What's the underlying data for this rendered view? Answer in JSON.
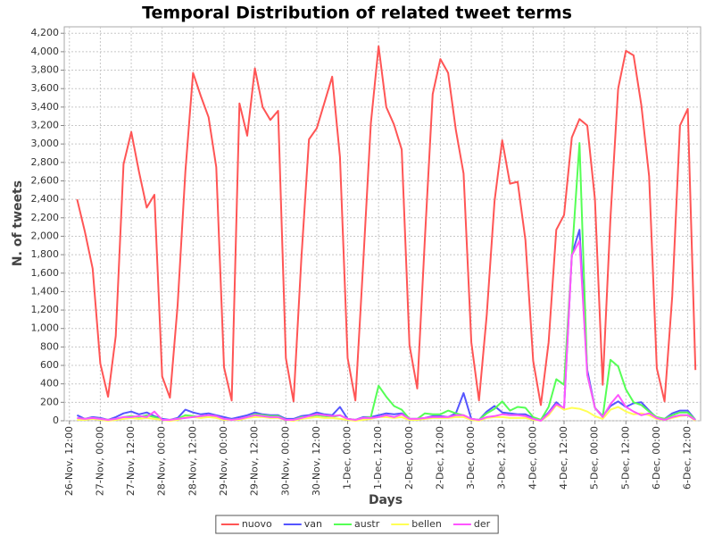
{
  "chart_data": {
    "type": "line",
    "title": "Temporal Distribution of related tweet terms",
    "xlabel": "Days",
    "ylabel": "N. of tweets",
    "x": [
      15,
      18,
      21,
      24,
      27,
      30,
      33,
      36,
      39,
      42,
      45,
      48,
      51,
      54,
      57,
      60,
      63,
      66,
      69,
      72,
      75,
      78,
      81,
      84,
      87,
      90,
      93,
      96,
      99,
      102,
      105,
      108,
      111,
      114,
      117,
      120,
      123,
      126,
      129,
      132,
      135,
      138,
      141,
      144,
      147,
      150,
      153,
      156,
      159,
      162,
      165,
      168,
      171,
      174,
      177,
      180,
      183,
      186,
      189,
      192,
      195,
      198,
      201,
      204,
      207,
      210,
      213,
      216,
      219,
      222,
      225,
      228,
      231,
      234,
      237,
      240,
      243,
      246,
      249,
      252,
      255
    ],
    "xlim": [
      10,
      257
    ],
    "xticks": [
      {
        "value": 12,
        "label": "26-Nov, 12:00"
      },
      {
        "value": 24,
        "label": "27-Nov, 00:00"
      },
      {
        "value": 36,
        "label": "27-Nov, 12:00"
      },
      {
        "value": 48,
        "label": "28-Nov, 00:00"
      },
      {
        "value": 60,
        "label": "28-Nov, 12:00"
      },
      {
        "value": 72,
        "label": "29-Nov, 00:00"
      },
      {
        "value": 84,
        "label": "29-Nov, 12:00"
      },
      {
        "value": 96,
        "label": "30-Nov, 00:00"
      },
      {
        "value": 108,
        "label": "30-Nov, 12:00"
      },
      {
        "value": 120,
        "label": "1-Dec, 00:00"
      },
      {
        "value": 132,
        "label": "1-Dec, 12:00"
      },
      {
        "value": 144,
        "label": "2-Dec, 00:00"
      },
      {
        "value": 156,
        "label": "2-Dec, 12:00"
      },
      {
        "value": 168,
        "label": "3-Dec, 00:00"
      },
      {
        "value": 180,
        "label": "3-Dec, 12:00"
      },
      {
        "value": 192,
        "label": "4-Dec, 00:00"
      },
      {
        "value": 204,
        "label": "4-Dec, 12:00"
      },
      {
        "value": 216,
        "label": "5-Dec, 00:00"
      },
      {
        "value": 228,
        "label": "5-Dec, 12:00"
      },
      {
        "value": 240,
        "label": "6-Dec, 00:00"
      },
      {
        "value": 252,
        "label": "6-Dec, 12:00"
      }
    ],
    "ylim": [
      0,
      4270
    ],
    "yticks": [
      0,
      200,
      400,
      600,
      800,
      {
        "value": 1000,
        "label": "1,000"
      },
      {
        "value": 1200,
        "label": "1,200"
      },
      {
        "value": 1400,
        "label": "1,400"
      },
      {
        "value": 1600,
        "label": "1,600"
      },
      {
        "value": 1800,
        "label": "1,800"
      },
      {
        "value": 2000,
        "label": "2,000"
      },
      {
        "value": 2200,
        "label": "2,200"
      },
      {
        "value": 2400,
        "label": "2,400"
      },
      {
        "value": 2600,
        "label": "2,600"
      },
      {
        "value": 2800,
        "label": "2,800"
      },
      {
        "value": 3000,
        "label": "3,000"
      },
      {
        "value": 3200,
        "label": "3,200"
      },
      {
        "value": 3400,
        "label": "3,400"
      },
      {
        "value": 3600,
        "label": "3,600"
      },
      {
        "value": 3800,
        "label": "3,800"
      },
      {
        "value": 4000,
        "label": "4,000"
      },
      {
        "value": 4200,
        "label": "4,200"
      }
    ],
    "grid": true,
    "legend": "bottom",
    "series": [
      {
        "name": "nuovo",
        "color": "#ff5555",
        "values": [
          2400,
          2050,
          1650,
          620,
          260,
          920,
          2780,
          3130,
          2700,
          2310,
          2450,
          480,
          250,
          1250,
          2700,
          3770,
          3520,
          3290,
          2750,
          580,
          220,
          3440,
          3090,
          3820,
          3400,
          3260,
          3360,
          680,
          210,
          1750,
          3050,
          3170,
          3450,
          3730,
          2860,
          680,
          220,
          1700,
          3220,
          4060,
          3400,
          3210,
          2940,
          820,
          350,
          1980,
          3540,
          3920,
          3770,
          3150,
          2680,
          850,
          220,
          1150,
          2380,
          3040,
          2570,
          2590,
          1960,
          650,
          170,
          850,
          2070,
          2230,
          3070,
          3270,
          3200,
          2400,
          390,
          2200,
          3600,
          4010,
          3960,
          3420,
          2650,
          570,
          210,
          1350,
          3200,
          3380,
          550
        ]
      },
      {
        "name": "van",
        "color": "#5555ff",
        "values": [
          60,
          20,
          40,
          30,
          10,
          40,
          80,
          100,
          70,
          90,
          50,
          20,
          10,
          30,
          120,
          90,
          70,
          80,
          60,
          40,
          20,
          40,
          60,
          90,
          70,
          60,
          60,
          20,
          20,
          50,
          60,
          90,
          70,
          60,
          150,
          20,
          10,
          40,
          40,
          60,
          80,
          70,
          80,
          20,
          20,
          30,
          50,
          50,
          40,
          80,
          300,
          20,
          10,
          100,
          160,
          90,
          80,
          70,
          70,
          30,
          10,
          90,
          200,
          130,
          1800,
          2070,
          550,
          140,
          50,
          160,
          210,
          150,
          190,
          200,
          110,
          30,
          20,
          80,
          110,
          110,
          10
        ]
      },
      {
        "name": "austr",
        "color": "#55ff55",
        "values": [
          30,
          20,
          30,
          20,
          10,
          20,
          40,
          50,
          40,
          60,
          40,
          10,
          10,
          20,
          60,
          50,
          40,
          50,
          40,
          20,
          10,
          20,
          40,
          70,
          60,
          50,
          50,
          10,
          10,
          40,
          40,
          60,
          50,
          40,
          60,
          20,
          10,
          30,
          40,
          380,
          260,
          160,
          120,
          20,
          20,
          80,
          70,
          70,
          110,
          80,
          60,
          20,
          10,
          80,
          130,
          210,
          110,
          150,
          140,
          40,
          10,
          150,
          450,
          390,
          1780,
          3010,
          500,
          140,
          40,
          660,
          590,
          340,
          200,
          170,
          100,
          40,
          20,
          60,
          90,
          90,
          10
        ]
      },
      {
        "name": "bellen",
        "color": "#ffff55",
        "values": [
          10,
          10,
          20,
          10,
          0,
          10,
          20,
          30,
          20,
          30,
          20,
          10,
          0,
          10,
          40,
          40,
          30,
          40,
          30,
          10,
          10,
          10,
          30,
          40,
          40,
          30,
          30,
          10,
          0,
          20,
          30,
          40,
          30,
          30,
          20,
          10,
          0,
          10,
          20,
          40,
          40,
          30,
          40,
          10,
          10,
          20,
          30,
          30,
          30,
          40,
          40,
          10,
          0,
          30,
          40,
          40,
          30,
          30,
          30,
          10,
          0,
          60,
          170,
          120,
          140,
          130,
          100,
          50,
          20,
          120,
          150,
          100,
          70,
          80,
          60,
          20,
          10,
          30,
          50,
          60,
          0
        ]
      },
      {
        "name": "der",
        "color": "#ff55ff",
        "values": [
          30,
          20,
          30,
          20,
          10,
          20,
          40,
          40,
          50,
          40,
          100,
          10,
          10,
          20,
          30,
          40,
          50,
          60,
          50,
          20,
          10,
          20,
          40,
          60,
          50,
          40,
          40,
          10,
          10,
          30,
          50,
          70,
          60,
          50,
          60,
          20,
          10,
          30,
          30,
          40,
          60,
          40,
          70,
          20,
          20,
          30,
          40,
          40,
          40,
          60,
          60,
          20,
          10,
          40,
          50,
          70,
          60,
          60,
          50,
          20,
          0,
          80,
          180,
          140,
          1790,
          1950,
          500,
          140,
          40,
          180,
          280,
          150,
          100,
          60,
          80,
          30,
          10,
          40,
          60,
          60,
          10
        ]
      }
    ]
  }
}
